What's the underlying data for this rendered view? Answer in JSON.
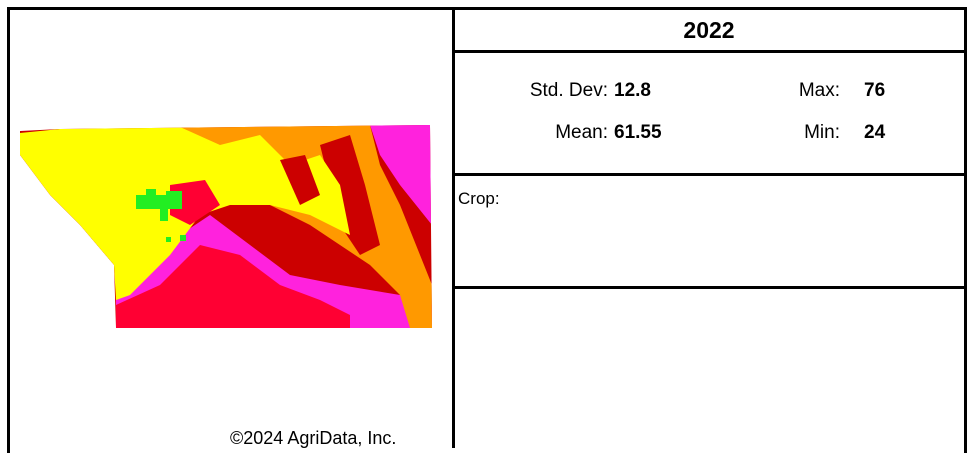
{
  "map": {
    "copyright": "©2024 AgriData, Inc.",
    "colors": {
      "pink": "#ff22dd",
      "red": "#ff0033",
      "dark_red": "#cc0000",
      "orange": "#ff9900",
      "yellow": "#ffff00",
      "green": "#22ee22"
    }
  },
  "panel": {
    "year": "2022",
    "std_dev_label": "Std. Dev:",
    "std_dev_value": "12.8",
    "mean_label": "Mean:",
    "mean_value": "61.55",
    "max_label": "Max:",
    "max_value": "76",
    "min_label": "Min:",
    "min_value": "24",
    "crop_label": "Crop:"
  }
}
